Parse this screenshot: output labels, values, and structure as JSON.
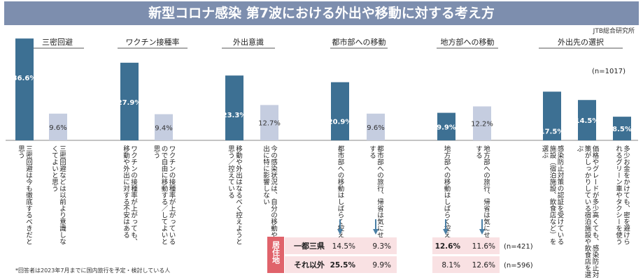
{
  "title": "新型コロナ感染 第7波における外出や移動に対する考え方",
  "source": "JTB総合研究所",
  "n_total": "(n=1017)",
  "footnote": "*回答者は2023年7月までに国内旅行を予定・検討している人",
  "colors": {
    "dark": "#3d7093",
    "light": "#c5cde0",
    "title_bg": "#7d8eae",
    "header_line": "#555555",
    "region_bg": "#f9e1e3",
    "region_label": "#e0636b",
    "arrow": "#4a7fa5"
  },
  "chart_data": {
    "type": "bar",
    "ylim": [
      0,
      40
    ],
    "groups": [
      {
        "header": "三密回避",
        "bars": [
          {
            "value": 36.6,
            "label": "36.6%",
            "tone": "dark",
            "desc": "三密回避は今も徹底するべきだと思う"
          },
          {
            "value": 9.6,
            "label": "9.6%",
            "tone": "light",
            "desc": "三密回避などは以前より意識しなくてよいと思う"
          }
        ]
      },
      {
        "header": "ワクチン接種率",
        "bars": [
          {
            "value": 27.9,
            "label": "27.9%",
            "tone": "dark",
            "desc": "ワクチンの接種率が上がっても、移動や外出に対する不安はある"
          },
          {
            "value": 9.4,
            "label": "9.4%",
            "tone": "light",
            "desc": "ワクチンの接種率が上がっているので自由に移動する／してよいと思う"
          }
        ]
      },
      {
        "header": "外出意識",
        "bars": [
          {
            "value": 23.3,
            "label": "23.3%",
            "tone": "dark",
            "desc": "移動や外出はなるべく控えようと思う／控えている"
          },
          {
            "value": 12.7,
            "label": "12.7%",
            "tone": "light",
            "desc": "今の感染状況は、自分の移動や外出に特に影響しない"
          }
        ]
      },
      {
        "header": "都市部への移動",
        "bars": [
          {
            "value": 20.9,
            "label": "20.9%",
            "tone": "dark",
            "desc": "都市部への移動はしばらく控える"
          },
          {
            "value": 9.6,
            "label": "9.6%",
            "tone": "light",
            "desc": "都市部への旅行、帰省は気にせずする"
          }
        ]
      },
      {
        "header": "地方部への移動",
        "bars": [
          {
            "value": 9.9,
            "label": "9.9%",
            "tone": "dark",
            "desc": "地方部への移動はしばらく控える"
          },
          {
            "value": 12.2,
            "label": "12.2%",
            "tone": "light",
            "desc": "地方部への旅行、帰省は気にせずする"
          }
        ]
      },
      {
        "header": "外出先の選択",
        "bars": [
          {
            "value": 17.5,
            "label": "17.5%",
            "tone": "dark",
            "desc": "感染防止対策の認証を受けている施設（宿泊施設、飲食店など）を選ぶ"
          },
          {
            "value": 14.5,
            "label": "14.5%",
            "tone": "dark",
            "desc": "価格やグレードが多少高くても、感染防止対策がしっかりしている宿泊施設や飲食店を選ぶ"
          },
          {
            "value": 8.5,
            "label": "8.5%",
            "tone": "dark",
            "desc": "多少お金をかけても、密を避けられるグリーン車やタクシーを使う"
          }
        ]
      }
    ],
    "residence_table": {
      "header": "居住地",
      "rows": [
        {
          "label": "一都三県",
          "urban": [
            "14.5%",
            "9.3%"
          ],
          "rural": [
            "12.6%",
            "11.6%"
          ],
          "n": "(n=421)",
          "bold_urban": [
            false,
            false
          ],
          "bold_rural": [
            true,
            false
          ]
        },
        {
          "label": "それ以外",
          "urban": [
            "25.5%",
            "9.9%"
          ],
          "rural": [
            "8.1%",
            "12.6%"
          ],
          "n": "(n=596)",
          "bold_urban": [
            true,
            false
          ],
          "bold_rural": [
            false,
            false
          ]
        }
      ]
    }
  }
}
